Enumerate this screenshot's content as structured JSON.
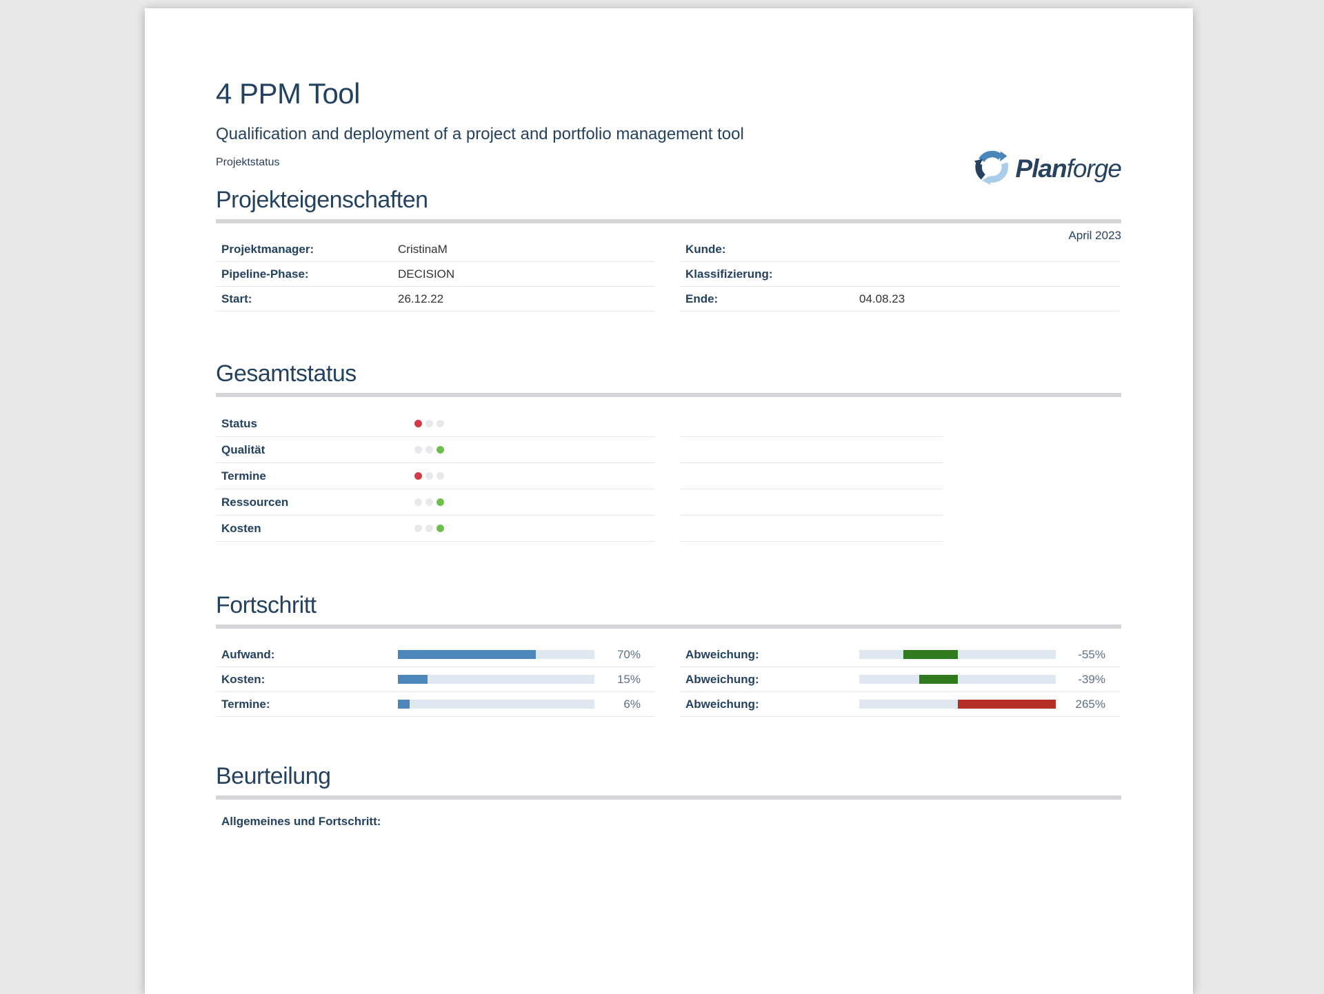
{
  "window": {
    "background": "#e9e9eb",
    "page_background": "#ffffff"
  },
  "header": {
    "title": "4 PPM Tool",
    "subtitle": "Qualification and deployment of a project and portfolio management tool",
    "doc_type": "Projektstatus",
    "date": "April 2023",
    "logo": {
      "brand_bold": "Plan",
      "brand_light": "forge",
      "icon": "planforge-circular-arrows-icon"
    }
  },
  "colors": {
    "heading": "#24425f",
    "label": "#24425f",
    "value": "#333333",
    "percent_text": "#5e7184",
    "section_rule": "#d5d5d9",
    "row_border": "#e7e7e9",
    "progress_fill": "#4d86b9",
    "progress_track": "#dfe8f1",
    "deviation_good": "#2f7a1f",
    "deviation_bad": "#b52e24",
    "light_red": "#d23c44",
    "light_green": "#6bbf4a",
    "light_off": "#e9e9ed"
  },
  "properties": {
    "heading": "Projekteigenschaften",
    "left_rows": [
      {
        "label": "Projektmanager:",
        "value": "CristinaM"
      },
      {
        "label": "Pipeline-Phase:",
        "value": "DECISION"
      },
      {
        "label": "Start:",
        "value": "26.12.22"
      }
    ],
    "right_rows": [
      {
        "label": "Kunde:",
        "value": ""
      },
      {
        "label": "Klassifizierung:",
        "value": ""
      },
      {
        "label": "Ende:",
        "value": "04.08.23"
      }
    ]
  },
  "overall_status": {
    "heading": "Gesamtstatus",
    "rows": [
      {
        "label": "Status",
        "lights": [
          "red",
          "off",
          "off"
        ]
      },
      {
        "label": "Qualität",
        "lights": [
          "off",
          "off",
          "green"
        ]
      },
      {
        "label": "Termine",
        "lights": [
          "red",
          "off",
          "off"
        ]
      },
      {
        "label": "Ressourcen",
        "lights": [
          "off",
          "off",
          "green"
        ]
      },
      {
        "label": "Kosten",
        "lights": [
          "off",
          "off",
          "green"
        ]
      }
    ]
  },
  "progress": {
    "heading": "Fortschritt",
    "left_rows": [
      {
        "label": "Aufwand:",
        "display": "70%",
        "percent": 70,
        "bar_type": "progress",
        "fill": "#4d86b9"
      },
      {
        "label": "Kosten:",
        "display": "15%",
        "percent": 15,
        "bar_type": "progress",
        "fill": "#4d86b9"
      },
      {
        "label": "Termine:",
        "display": "6%",
        "percent": 6,
        "bar_type": "progress",
        "fill": "#4d86b9"
      }
    ],
    "right_rows": [
      {
        "label": "Abweichung:",
        "display": "-55%",
        "percent": -55,
        "bar_type": "deviation",
        "fill": "#2f7a1f"
      },
      {
        "label": "Abweichung:",
        "display": "-39%",
        "percent": -39,
        "bar_type": "deviation",
        "fill": "#2f7a1f"
      },
      {
        "label": "Abweichung:",
        "display": "265%",
        "percent": 265,
        "bar_type": "deviation",
        "fill": "#b52e24"
      }
    ]
  },
  "assessment": {
    "heading": "Beurteilung",
    "first_item_label": "Allgemeines und Fortschritt:"
  }
}
